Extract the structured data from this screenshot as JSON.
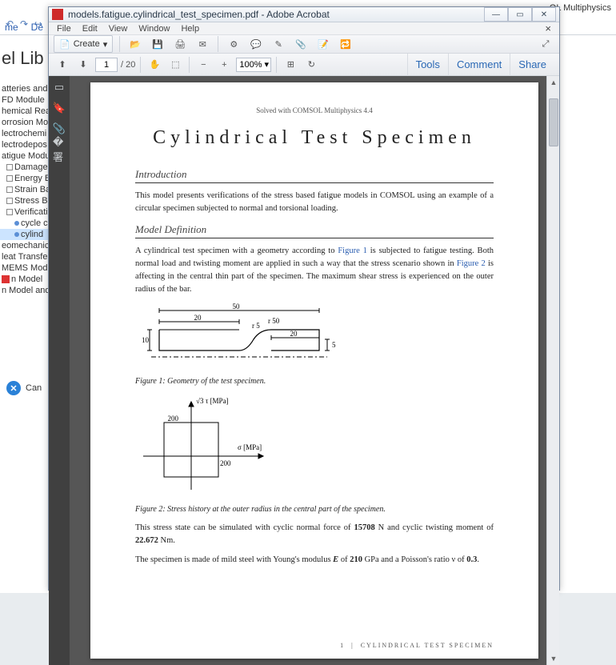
{
  "background": {
    "suffix_title": "OL Multiphysics",
    "tabs": [
      "me",
      "De"
    ],
    "history_icons": [
      "↶",
      "↷",
      "↪"
    ],
    "lib_label": "el Lib",
    "tree": [
      {
        "cls": "",
        "icon": "",
        "label": "atteries and"
      },
      {
        "cls": "",
        "icon": "",
        "label": "FD Module"
      },
      {
        "cls": "",
        "icon": "",
        "label": "hemical Rea"
      },
      {
        "cls": "",
        "icon": "",
        "label": "orrosion Mo"
      },
      {
        "cls": "",
        "icon": "",
        "label": "lectrochemi"
      },
      {
        "cls": "",
        "icon": "",
        "label": "lectrodepos"
      },
      {
        "cls": "",
        "icon": "",
        "label": "atigue Modu"
      },
      {
        "cls": "i1",
        "icon": "sq",
        "label": "Damage"
      },
      {
        "cls": "i1",
        "icon": "sq",
        "label": "Energy Ba"
      },
      {
        "cls": "i1",
        "icon": "sq",
        "label": "Strain Bas"
      },
      {
        "cls": "i1",
        "icon": "sq",
        "label": "Stress Bas"
      },
      {
        "cls": "i1",
        "icon": "sq",
        "label": "Verificatio"
      },
      {
        "cls": "i2",
        "icon": "dot",
        "label": "cycle c"
      },
      {
        "cls": "i2 sel",
        "icon": "dot",
        "label": "cylind"
      },
      {
        "cls": "",
        "icon": "",
        "label": "eomechanic"
      },
      {
        "cls": "",
        "icon": "",
        "label": "leat Transfer"
      },
      {
        "cls": "",
        "icon": "",
        "label": "MEMS Modul"
      },
      {
        "cls": "",
        "icon": "",
        "label": " "
      },
      {
        "cls": "",
        "icon": "pdf",
        "label": "n Model"
      },
      {
        "cls": "",
        "icon": "",
        "label": " "
      },
      {
        "cls": "",
        "icon": "",
        "label": "n Model and"
      }
    ],
    "cancel": "Can"
  },
  "acrobat": {
    "title": "models.fatigue.cylindrical_test_specimen.pdf - Adobe Acrobat",
    "win": {
      "min": "—",
      "max": "▭",
      "close": "✕"
    },
    "menu": [
      "File",
      "Edit",
      "View",
      "Window",
      "Help"
    ],
    "toolbar1": {
      "create": "Create",
      "icons": [
        "📂",
        "💾",
        "🖨",
        "✉",
        "",
        "⚙",
        "💬",
        "✎",
        "📎",
        "📝",
        "🔁"
      ]
    },
    "toolbar2": {
      "page_current": "1",
      "page_total": "20",
      "zoom": "100%",
      "right": [
        "Tools",
        "Comment",
        "Share"
      ]
    },
    "navpane": [
      "▭",
      "🔖",
      "📎",
      "�署"
    ]
  },
  "document": {
    "solved": "Solved with COMSOL Multiphysics 4.4",
    "title": "Cylindrical Test Specimen",
    "sec_intro": "Introduction",
    "intro_body": "This model presents verifications of the stress based fatigue models in COMSOL using an example of a circular specimen subjected to normal and torsional loading.",
    "sec_def": "Model Definition",
    "def_p1a": "A cylindrical test specimen with a geometry according to ",
    "def_fig1": "Figure 1",
    "def_p1b": " is subjected to fatigue testing. Both normal load and twisting moment are applied in such a way that the stress scenario shown in ",
    "def_fig2": "Figure 2",
    "def_p1c": " is affecting in the central thin part of the specimen. The maximum shear stress is experienced on the outer radius of the bar.",
    "fig1_caption": "Figure 1: Geometry of the test specimen.",
    "fig1": {
      "dim_50": "50",
      "dim_20a": "20",
      "dim_20b": "20",
      "dim_r5": "r 5",
      "dim_r50": "r 50",
      "dim_10": "10",
      "dim_5": "5",
      "stroke": "#000"
    },
    "fig2_caption": "Figure 2: Stress history at the outer radius in the central part of the specimen.",
    "fig2": {
      "ylabel": "√3 τ  [MPa]",
      "xlabel": "σ [MPa]",
      "tick_200": "200",
      "tick_200b": "200",
      "stroke": "#000"
    },
    "para2a": "This stress state can be simulated with cyclic normal force of ",
    "para2_15708": "15708",
    "para2b": " N and cyclic twisting moment of ",
    "para2_22": "22.672",
    "para2c": " Nm.",
    "para3a": "The specimen is made of mild steel with Young's modulus ",
    "para3_E": "E",
    "para3b": " of ",
    "para3_210": "210",
    "para3c": " GPa and a Poisson's ratio ν of ",
    "para3_03": "0.3",
    "para3d": ".",
    "footer_page": "1",
    "footer_title": "CYLINDRICAL TEST SPECIMEN"
  }
}
